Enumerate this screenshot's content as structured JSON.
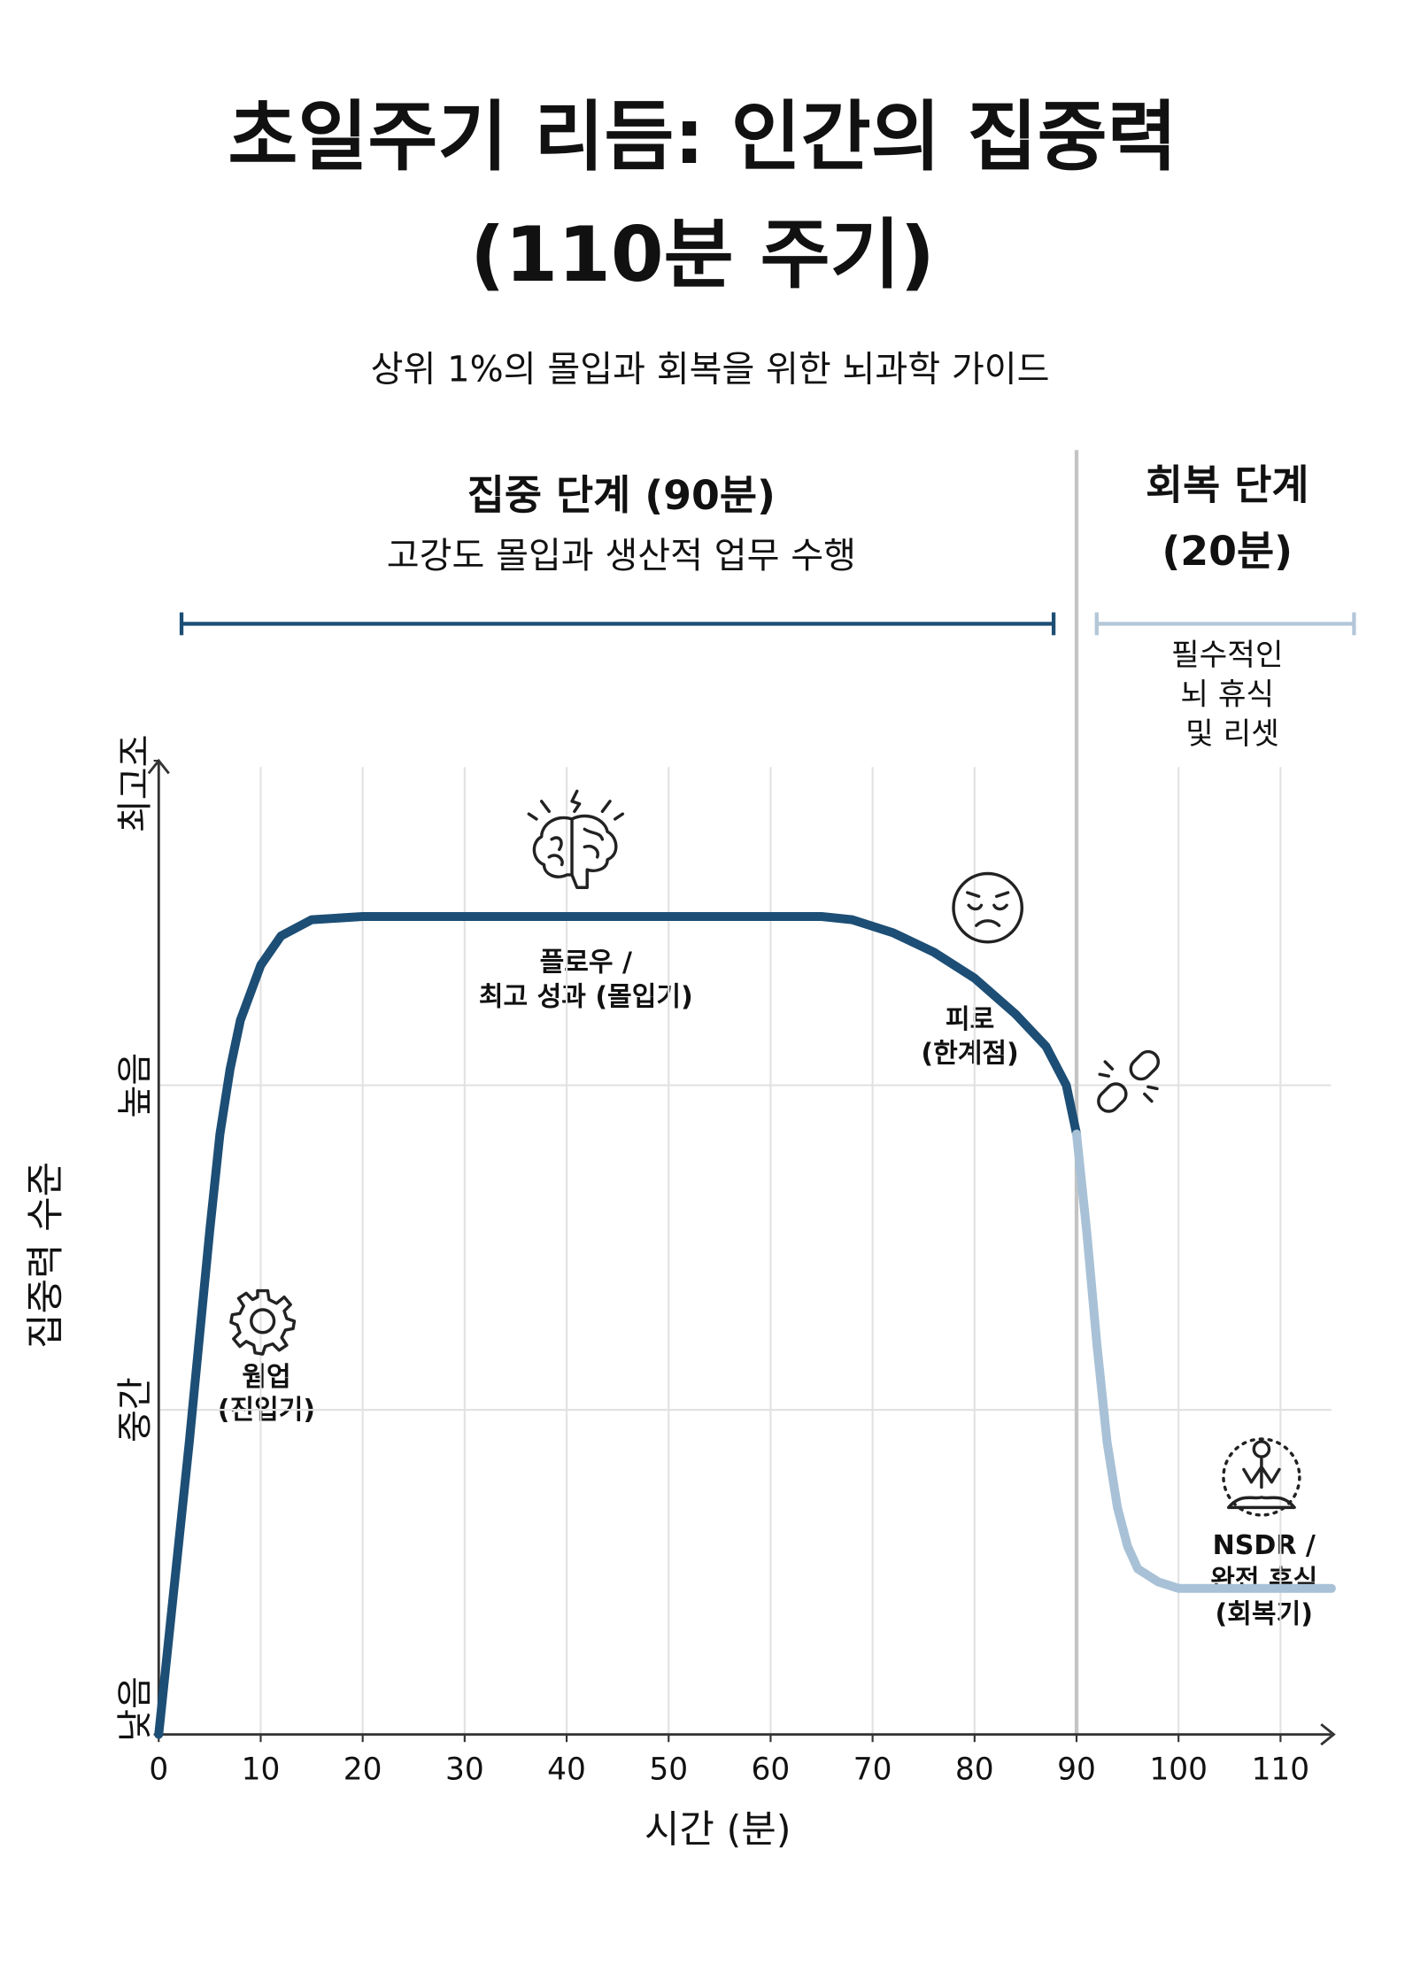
{
  "chart_data": {
    "type": "line",
    "title": [
      "초일주기 리듬: 인간의 집중력",
      "(110분 주기)"
    ],
    "subtitle": "상위 1%의 몰입과 회복을 위한 뇌과학 가이드",
    "x_label": "시간 (분)",
    "y_label": "집중력 수준",
    "phases": [
      {
        "title": [
          "집중 단계 (90분)"
        ],
        "description": [
          "고강도 몰입과 생산적 업무 수행"
        ],
        "color": "#1d4e75"
      },
      {
        "title": [
          "회복 단계",
          "(20분)"
        ],
        "description": [
          "필수적인",
          "뇌 휴식",
          "및 리셋"
        ],
        "color": "#b3c7d8"
      }
    ],
    "annotations": [
      {
        "lines": [
          "웜업",
          "(진입기)"
        ]
      },
      {
        "lines": [
          "플로우 /",
          "최고 성과 (몰입기)"
        ]
      },
      {
        "lines": [
          "피로",
          "(한계점)"
        ]
      },
      {
        "lines": [
          "NSDR /",
          "완전 휴식",
          "(회복기)"
        ]
      }
    ],
    "x": [
      0,
      3,
      5,
      6,
      7,
      8,
      10,
      12,
      15,
      20,
      30,
      40,
      50,
      60,
      65,
      68,
      72,
      76,
      80,
      84,
      87,
      89,
      90,
      91,
      92,
      93,
      94,
      95,
      96,
      98,
      100,
      105,
      110,
      115
    ],
    "series": [
      {
        "color": "#1d4e75",
        "values": [
          0,
          0.9,
          1.55,
          1.85,
          2.05,
          2.2,
          2.37,
          2.46,
          2.51,
          2.52,
          2.52,
          2.52,
          2.52,
          2.52,
          2.52,
          2.51,
          2.47,
          2.41,
          2.33,
          2.22,
          2.12,
          2.0,
          1.85,
          null,
          null,
          null,
          null,
          null,
          null,
          null,
          null,
          null,
          null,
          null
        ]
      },
      {
        "color": "#a8c1d6",
        "values": [
          null,
          null,
          null,
          null,
          null,
          null,
          null,
          null,
          null,
          null,
          null,
          null,
          null,
          null,
          null,
          null,
          null,
          null,
          null,
          null,
          null,
          null,
          1.85,
          1.55,
          1.2,
          0.9,
          0.7,
          0.58,
          0.51,
          0.47,
          0.45,
          0.45,
          0.45,
          0.45
        ]
      }
    ],
    "xlim": [
      0,
      115
    ],
    "xticks": [
      0,
      10,
      20,
      30,
      40,
      50,
      60,
      70,
      80,
      90,
      100,
      110
    ],
    "ylim": [
      0,
      3
    ],
    "yticks": [
      {
        "value": 0,
        "label": "낮음"
      },
      {
        "value": 1,
        "label": "중간"
      },
      {
        "value": 2,
        "label": "높음"
      },
      {
        "value": 3,
        "label": "최고조"
      }
    ],
    "vline": 90,
    "grid": true
  }
}
